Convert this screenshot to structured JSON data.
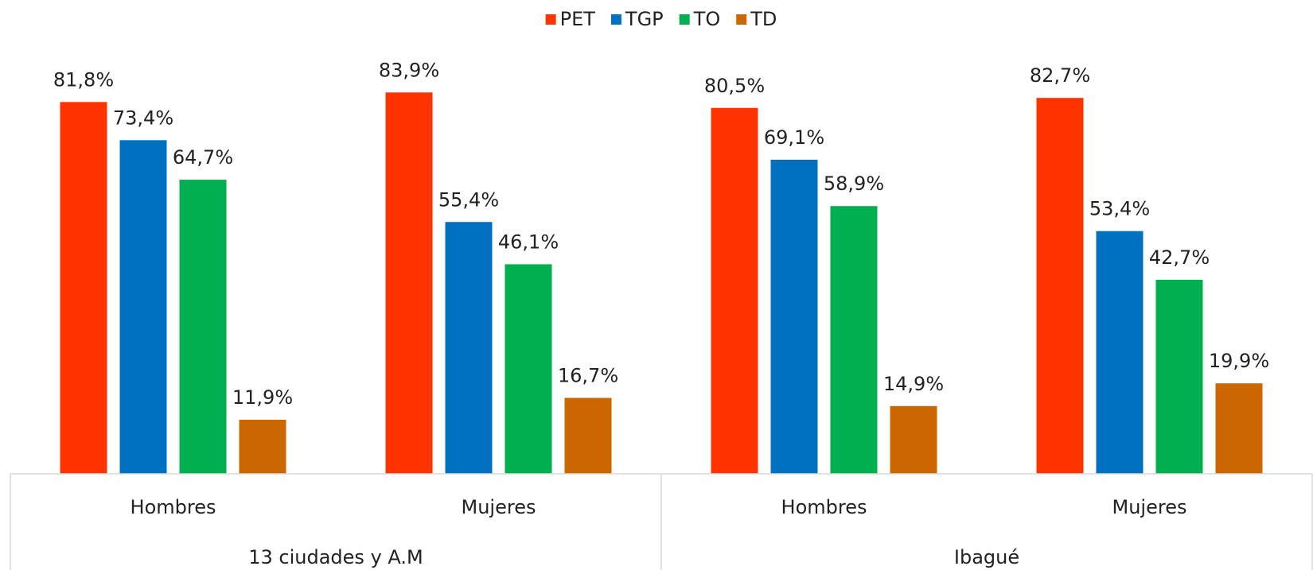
{
  "chart_data": {
    "type": "bar",
    "categories": [
      "Hombres",
      "Mujeres",
      "Hombres",
      "Mujeres"
    ],
    "category_groups": [
      "13 ciudades y A.M",
      "Ibagué"
    ],
    "series": [
      {
        "name": "PET",
        "color": "#ff3300",
        "values": [
          81.8,
          83.9,
          80.5,
          82.7
        ],
        "value_labels": [
          "81,8%",
          "83,9%",
          "80,5%",
          "82,7%"
        ]
      },
      {
        "name": "TGP",
        "color": "#0070c0",
        "values": [
          73.4,
          55.4,
          69.1,
          53.4
        ],
        "value_labels": [
          "73,4%",
          "55,4%",
          "69,1%",
          "53,4%"
        ]
      },
      {
        "name": "TO",
        "color": "#00b050",
        "values": [
          64.7,
          46.1,
          58.9,
          42.7
        ],
        "value_labels": [
          "64,7%",
          "46,1%",
          "58,9%",
          "42,7%"
        ]
      },
      {
        "name": "TD",
        "color": "#cc6600",
        "values": [
          11.9,
          16.7,
          14.9,
          19.9
        ],
        "value_labels": [
          "11,9%",
          "16,7%",
          "14,9%",
          "19,9%"
        ]
      }
    ],
    "ylim": [
      0,
      92
    ],
    "legend": "top"
  }
}
